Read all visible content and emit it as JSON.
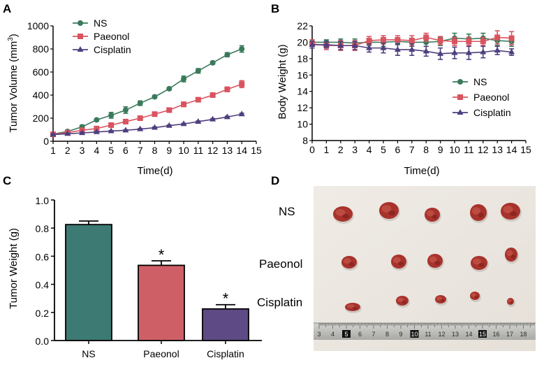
{
  "panels": [
    {
      "letter": "A"
    },
    {
      "letter": "B"
    },
    {
      "letter": "C"
    },
    {
      "letter": "D"
    }
  ],
  "chart_data": [
    {
      "id": "A",
      "type": "line",
      "title": "",
      "xlabel": "Time(d)",
      "ylabel": "Tumor Volume",
      "ylabel_unit": "(mm",
      "ylabel_unit_sup": "3",
      "ylabel_unit_close": ")",
      "xlim": [
        1,
        15
      ],
      "ylim": [
        0,
        1000
      ],
      "xticks": [
        1,
        2,
        3,
        4,
        5,
        6,
        7,
        8,
        9,
        10,
        11,
        12,
        13,
        14,
        15
      ],
      "yticks": [
        0,
        200,
        400,
        600,
        800,
        1000
      ],
      "legend_position": "top-left",
      "series": [
        {
          "name": "NS",
          "color": "#3a7a5c",
          "marker": "circle",
          "x": [
            1,
            2,
            3,
            4,
            5,
            6,
            7,
            8,
            9,
            10,
            11,
            12,
            13,
            14
          ],
          "y": [
            62,
            85,
            125,
            185,
            225,
            270,
            330,
            385,
            455,
            540,
            610,
            680,
            750,
            800
          ],
          "err": [
            5,
            7,
            15,
            10,
            25,
            28,
            20,
            12,
            10,
            25,
            20,
            12,
            18,
            28
          ]
        },
        {
          "name": "Paeonol",
          "color": "#d9545f",
          "marker": "square",
          "x": [
            1,
            2,
            3,
            4,
            5,
            6,
            7,
            8,
            9,
            10,
            11,
            12,
            13,
            14
          ],
          "y": [
            60,
            75,
            95,
            110,
            140,
            170,
            200,
            235,
            270,
            320,
            360,
            400,
            450,
            495
          ],
          "err": [
            5,
            6,
            8,
            8,
            12,
            12,
            12,
            18,
            15,
            20,
            15,
            12,
            20,
            30
          ]
        },
        {
          "name": "Cisplatin",
          "color": "#4e3f7e",
          "marker": "triangle",
          "x": [
            1,
            2,
            3,
            4,
            5,
            6,
            7,
            8,
            9,
            10,
            11,
            12,
            13,
            14
          ],
          "y": [
            58,
            65,
            72,
            80,
            88,
            95,
            105,
            118,
            135,
            150,
            170,
            190,
            210,
            235
          ],
          "err": [
            4,
            4,
            5,
            5,
            5,
            5,
            6,
            6,
            6,
            6,
            6,
            7,
            7,
            8
          ]
        }
      ]
    },
    {
      "id": "B",
      "type": "line",
      "title": "",
      "xlabel": "Time(d)",
      "ylabel": "Body Weight (g)",
      "xlim": [
        0,
        15
      ],
      "ylim": [
        8,
        22
      ],
      "xticks": [
        0,
        1,
        2,
        3,
        4,
        5,
        6,
        7,
        8,
        9,
        10,
        11,
        12,
        13,
        14,
        15
      ],
      "yticks": [
        8,
        10,
        12,
        14,
        16,
        18,
        20,
        22
      ],
      "legend_position": "center-right",
      "series": [
        {
          "name": "NS",
          "color": "#3a7a5c",
          "marker": "circle",
          "x": [
            0,
            1,
            2,
            3,
            4,
            5,
            6,
            7,
            8,
            9,
            10,
            11,
            12,
            13,
            14
          ],
          "y": [
            20.0,
            20.0,
            20.0,
            19.9,
            20.0,
            20.0,
            20.1,
            20.0,
            20.0,
            20.1,
            20.5,
            20.4,
            20.5,
            20.2,
            20.1
          ],
          "err": [
            0.3,
            0.3,
            0.4,
            0.5,
            0.4,
            0.5,
            0.4,
            0.5,
            0.5,
            0.5,
            0.6,
            0.6,
            0.6,
            0.6,
            0.6
          ]
        },
        {
          "name": "Paeonol",
          "color": "#d9545f",
          "marker": "square",
          "x": [
            0,
            1,
            2,
            3,
            4,
            5,
            6,
            7,
            8,
            9,
            10,
            11,
            12,
            13,
            14
          ],
          "y": [
            19.8,
            19.6,
            19.6,
            19.6,
            20.2,
            20.3,
            20.3,
            20.2,
            20.6,
            20.2,
            20.1,
            20.1,
            20.1,
            20.6,
            20.5
          ],
          "err": [
            0.5,
            0.5,
            0.6,
            0.6,
            0.5,
            0.5,
            0.5,
            0.6,
            0.5,
            0.5,
            0.5,
            0.5,
            0.5,
            0.8,
            0.8
          ]
        },
        {
          "name": "Cisplatin",
          "color": "#4e3f7e",
          "marker": "triangle",
          "x": [
            0,
            1,
            2,
            3,
            4,
            5,
            6,
            7,
            8,
            9,
            10,
            11,
            12,
            13,
            14
          ],
          "y": [
            19.7,
            19.7,
            19.6,
            19.6,
            19.3,
            19.3,
            19.1,
            19.1,
            18.9,
            18.6,
            18.7,
            18.7,
            18.8,
            19.0,
            18.8
          ],
          "err": [
            0.4,
            0.4,
            0.5,
            0.5,
            0.5,
            0.6,
            0.7,
            0.7,
            0.6,
            0.7,
            0.7,
            0.8,
            0.7,
            0.5,
            0.4
          ]
        }
      ]
    },
    {
      "id": "C",
      "type": "bar",
      "title": "",
      "xlabel": "",
      "ylabel": "Tumor Weight (g)",
      "ylim": [
        0,
        1.0
      ],
      "yticks": [
        "0.0",
        "0.2",
        "0.4",
        "0.6",
        "0.8",
        "1.0"
      ],
      "categories": [
        "NS",
        "Paeonol",
        "Cisplatin"
      ],
      "values": [
        0.825,
        0.535,
        0.225
      ],
      "err": [
        0.025,
        0.032,
        0.03
      ],
      "colors": [
        "#3d7a74",
        "#cf5f66",
        "#5e4a84"
      ],
      "annotations": [
        "",
        "*",
        "*"
      ]
    }
  ],
  "photo": {
    "row_labels": [
      "NS",
      "Paeonol",
      "Cisplatin"
    ],
    "ruler_numbers": [
      "3",
      "4",
      "5",
      "6",
      "7",
      "8",
      "9",
      "10",
      "11",
      "12",
      "13",
      "14",
      "15",
      "16",
      "17",
      "18"
    ],
    "ruler_highlighted": [
      "5",
      "10",
      "15"
    ],
    "tissue_color": "#a8322c",
    "tissue_dark": "#7a1e1a",
    "background_color": "#eeeae4",
    "ruler_color": "#b9b9b5"
  }
}
